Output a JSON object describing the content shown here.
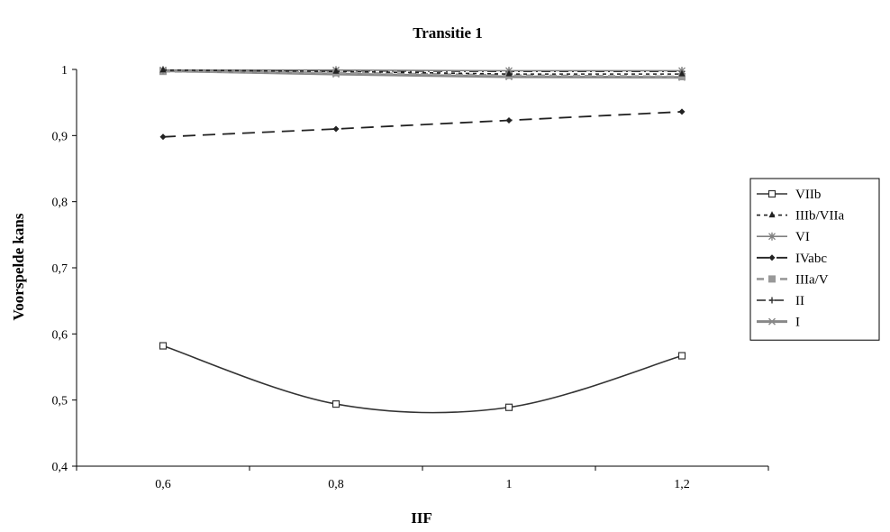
{
  "chart_data": {
    "type": "line",
    "title": "Transitie 1",
    "xlabel": "IIF",
    "ylabel": "Voorspelde kans",
    "x": [
      0.6,
      0.8,
      1.0,
      1.2
    ],
    "x_tick_labels": [
      "0,6",
      "0,8",
      "1",
      "1,2"
    ],
    "xlim": [
      0.5,
      1.3
    ],
    "ylim": [
      0.4,
      1.0
    ],
    "y_ticks": [
      0.4,
      0.5,
      0.6,
      0.7,
      0.8,
      0.9,
      1.0
    ],
    "y_tick_labels": [
      "0,4",
      "0,5",
      "0,6",
      "0,7",
      "0,8",
      "0,9",
      "1"
    ],
    "grid": false,
    "legend_position": "right",
    "series": [
      {
        "name": "VIIb",
        "values": [
          0.582,
          0.494,
          0.489,
          0.567
        ],
        "color": "#333333",
        "dash": "solid",
        "marker": "square-open",
        "smooth": true
      },
      {
        "name": "IIIb/VIIa",
        "values": [
          0.999,
          0.997,
          0.993,
          0.993
        ],
        "color": "#222222",
        "dash": "short-dash",
        "marker": "triangle"
      },
      {
        "name": "VI",
        "values": [
          0.999,
          0.999,
          0.998,
          0.998
        ],
        "color": "#808080",
        "dash": "solid",
        "marker": "asterisk"
      },
      {
        "name": "IVabc",
        "values": [
          0.898,
          0.91,
          0.923,
          0.936
        ],
        "color": "#222222",
        "dash": "long-dash",
        "marker": "diamond"
      },
      {
        "name": "IIIa/V",
        "values": [
          0.997,
          0.995,
          0.991,
          0.989
        ],
        "color": "#999999",
        "dash": "dash",
        "marker": "square"
      },
      {
        "name": "II",
        "values": [
          0.999,
          0.998,
          0.997,
          0.997
        ],
        "color": "#222222",
        "dash": "dash-dot",
        "marker": "plus"
      },
      {
        "name": "I",
        "values": [
          0.998,
          0.993,
          0.989,
          0.988
        ],
        "color": "#888888",
        "dash": "solid-thick",
        "marker": "x"
      }
    ]
  }
}
